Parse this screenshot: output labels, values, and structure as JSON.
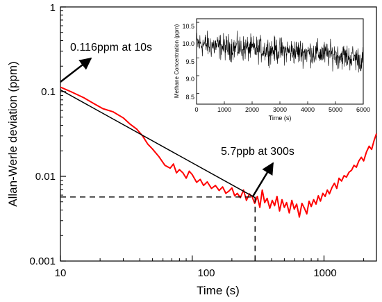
{
  "chart_data": [
    {
      "type": "line",
      "xscale": "log",
      "yscale": "log",
      "xlabel": "Time (s)",
      "ylabel": "Allan-Werle deviation (ppm)",
      "xlim": [
        10,
        2500
      ],
      "ylim": [
        0.001,
        1
      ],
      "xticks": [
        10,
        100,
        1000
      ],
      "xtick_labels": [
        "10",
        "100",
        "1000"
      ],
      "yticks": [
        0.001,
        0.01,
        0.1,
        1
      ],
      "ytick_labels": [
        "0.001",
        "0.01",
        "0.1",
        "1"
      ],
      "series": [
        {
          "color": "#ff0000",
          "x": [
            10,
            12,
            15,
            18,
            21,
            25,
            30,
            34,
            38,
            42,
            46,
            50,
            56,
            62,
            68,
            72,
            76,
            80,
            85,
            90,
            95,
            100,
            108,
            115,
            122,
            130,
            140,
            150,
            160,
            170,
            180,
            190,
            200,
            210,
            220,
            232,
            245,
            258,
            272,
            285,
            298,
            312,
            326,
            340,
            355,
            370,
            388,
            405,
            422,
            440,
            460,
            480,
            500,
            520,
            545,
            570,
            595,
            620,
            650,
            680,
            710,
            740,
            770,
            800,
            835,
            870,
            905,
            940,
            980,
            1020,
            1060,
            1100,
            1150,
            1200,
            1250,
            1300,
            1360,
            1420,
            1480,
            1550,
            1620,
            1690,
            1760,
            1840,
            1920,
            2000,
            2100,
            2200,
            2300,
            2400,
            2500
          ],
          "y": [
            0.113,
            0.1,
            0.085,
            0.072,
            0.063,
            0.058,
            0.049,
            0.041,
            0.036,
            0.03,
            0.024,
            0.021,
            0.017,
            0.0135,
            0.0125,
            0.014,
            0.011,
            0.012,
            0.011,
            0.0095,
            0.0115,
            0.0105,
            0.0085,
            0.0092,
            0.0078,
            0.0086,
            0.0072,
            0.0078,
            0.0068,
            0.0075,
            0.0063,
            0.0067,
            0.0073,
            0.0059,
            0.0063,
            0.0056,
            0.0069,
            0.0052,
            0.0062,
            0.0057,
            0.0048,
            0.0058,
            0.0043,
            0.0069,
            0.0049,
            0.0055,
            0.0042,
            0.0052,
            0.0045,
            0.0058,
            0.0039,
            0.0053,
            0.0043,
            0.0049,
            0.0037,
            0.0052,
            0.0041,
            0.0047,
            0.0033,
            0.0048,
            0.0042,
            0.0036,
            0.0051,
            0.0044,
            0.0053,
            0.0047,
            0.0059,
            0.0051,
            0.0063,
            0.0058,
            0.0069,
            0.0062,
            0.0074,
            0.0083,
            0.0072,
            0.0095,
            0.0088,
            0.0102,
            0.0098,
            0.0112,
            0.0118,
            0.0135,
            0.0128,
            0.0152,
            0.0168,
            0.0152,
            0.0194,
            0.0227,
            0.0208,
            0.0265,
            0.032
          ]
        },
        {
          "color": "#000000",
          "x": [
            10,
            300
          ],
          "y": [
            0.105,
            0.0056
          ]
        }
      ],
      "reference_lines": {
        "color": "#000000",
        "style": "dashed",
        "horizontal_y": 0.0057,
        "vertical_x": 300
      },
      "annotations": [
        {
          "text": "0.116ppm at 10s",
          "point": [
            10,
            0.116
          ]
        },
        {
          "text": "5.7ppb at 300s",
          "point": [
            300,
            0.0057
          ]
        }
      ]
    },
    {
      "type": "line",
      "inset": true,
      "xlabel": "Time (s)",
      "ylabel": "Methane Concentration (ppm)",
      "xlim": [
        0,
        6000
      ],
      "ylim": [
        8.2,
        10.6
      ],
      "xticks": [
        0,
        1000,
        2000,
        3000,
        4000,
        5000,
        6000
      ],
      "xtick_labels": [
        "0",
        "1000",
        "2000",
        "3000",
        "4000",
        "5000",
        "6000"
      ],
      "yticks": [
        8.5,
        9.0,
        9.5,
        10.0,
        10.5
      ],
      "ytick_labels": [
        "8.5",
        "9.0",
        "9.5",
        "10.0",
        "10.5"
      ],
      "series": [
        {
          "color": "#000000",
          "trend_x": [
            0,
            500,
            1000,
            1500,
            2000,
            2500,
            3000,
            3500,
            4000,
            4500,
            5000,
            5500,
            6000
          ],
          "trend_y": [
            9.9,
            9.85,
            9.8,
            9.78,
            9.75,
            9.73,
            9.7,
            9.68,
            9.65,
            9.62,
            9.58,
            9.52,
            9.45
          ],
          "noise_amplitude": 0.3
        }
      ]
    }
  ]
}
